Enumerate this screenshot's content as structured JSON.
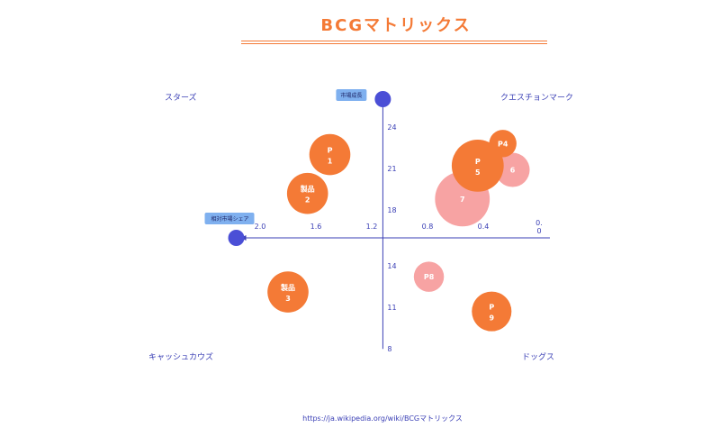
{
  "chart_data": {
    "type": "scatter",
    "title": "BCGマトリックス",
    "xlabel": "相対市場シェア",
    "ylabel": "市場成長",
    "x_reversed": true,
    "xlim": [
      0,
      2.2
    ],
    "ylim": [
      8,
      24
    ],
    "x_ticks": [
      "2.0",
      "1.6",
      "1.2",
      "0.8",
      "0.4",
      "0.\n0"
    ],
    "x_tick_values": [
      2.0,
      1.6,
      1.2,
      0.8,
      0.4,
      0.0
    ],
    "y_ticks": [
      "24",
      "21",
      "18",
      "14",
      "11",
      "8"
    ],
    "y_tick_values": [
      24,
      21,
      18,
      14,
      11,
      8
    ],
    "quadrants": {
      "top_left": "スターズ",
      "top_right": "クエスチョンマーク",
      "bottom_left": "キャッシュカウズ",
      "bottom_right": "ドッグス"
    },
    "points": [
      {
        "label": "P\n1",
        "x": 1.5,
        "y": 22.0,
        "size": 3.0,
        "color": "#f47a36"
      },
      {
        "label": "製品\n2",
        "x": 1.66,
        "y": 19.2,
        "size": 3.0,
        "color": "#f47a36"
      },
      {
        "label": "製品\n3",
        "x": 1.8,
        "y": 12.1,
        "size": 3.0,
        "color": "#f47a36"
      },
      {
        "label": "P4",
        "x": 0.26,
        "y": 22.8,
        "size": 2.0,
        "color": "#f47a36"
      },
      {
        "label": "6",
        "x": 0.19,
        "y": 20.9,
        "size": 2.5,
        "color": "#f7a3a3"
      },
      {
        "label": "7",
        "x": 0.55,
        "y": 18.8,
        "size": 4.0,
        "color": "#f7a3a3"
      },
      {
        "label": "P\n5",
        "x": 0.44,
        "y": 21.2,
        "size": 3.8,
        "color": "#f47a36"
      },
      {
        "label": "P8",
        "x": 0.79,
        "y": 13.2,
        "size": 2.2,
        "color": "#f7a3a3"
      },
      {
        "label": "P\n9",
        "x": 0.34,
        "y": 10.7,
        "size": 2.9,
        "color": "#f47a36"
      }
    ],
    "colors": {
      "axis": "#3a3fb5",
      "marker": "#4b4fd6",
      "callout": "#7fb0ef"
    }
  },
  "source": "https://ja.wikipedia.org/wiki/BCGマトリックス"
}
